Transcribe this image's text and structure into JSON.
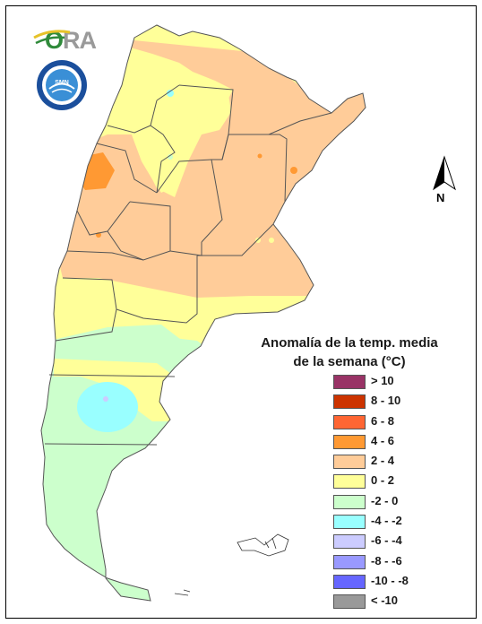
{
  "logo": {
    "text_o": "O",
    "text_ra": "RA"
  },
  "seal": {
    "ring_text": "SERVICIO METEOROLÓGICO NACIONAL",
    "bottom_text": "ARGENTINA",
    "center_text": "SMN"
  },
  "north_arrow": {
    "label": "N"
  },
  "legend": {
    "title_line1": "Anomalía de la temp. media",
    "title_line2": "de la semana (°C)",
    "items": [
      {
        "label": "> 10",
        "color": "#993366"
      },
      {
        "label": "8 - 10",
        "color": "#cc3300"
      },
      {
        "label": "6 - 8",
        "color": "#ff6633"
      },
      {
        "label": "4 - 6",
        "color": "#ff9933"
      },
      {
        "label": "2 - 4",
        "color": "#ffcc99"
      },
      {
        "label": "0 - 2",
        "color": "#ffff99"
      },
      {
        "label": "-2 - 0",
        "color": "#ccffcc"
      },
      {
        "label": "-4 - -2",
        "color": "#99ffff"
      },
      {
        "label": "-6 - -4",
        "color": "#ccccff"
      },
      {
        "label": "-8 - -6",
        "color": "#9999ff"
      },
      {
        "label": "-10 - -8",
        "color": "#6666ff"
      },
      {
        "label": "< -10",
        "color": "#999999"
      }
    ]
  }
}
